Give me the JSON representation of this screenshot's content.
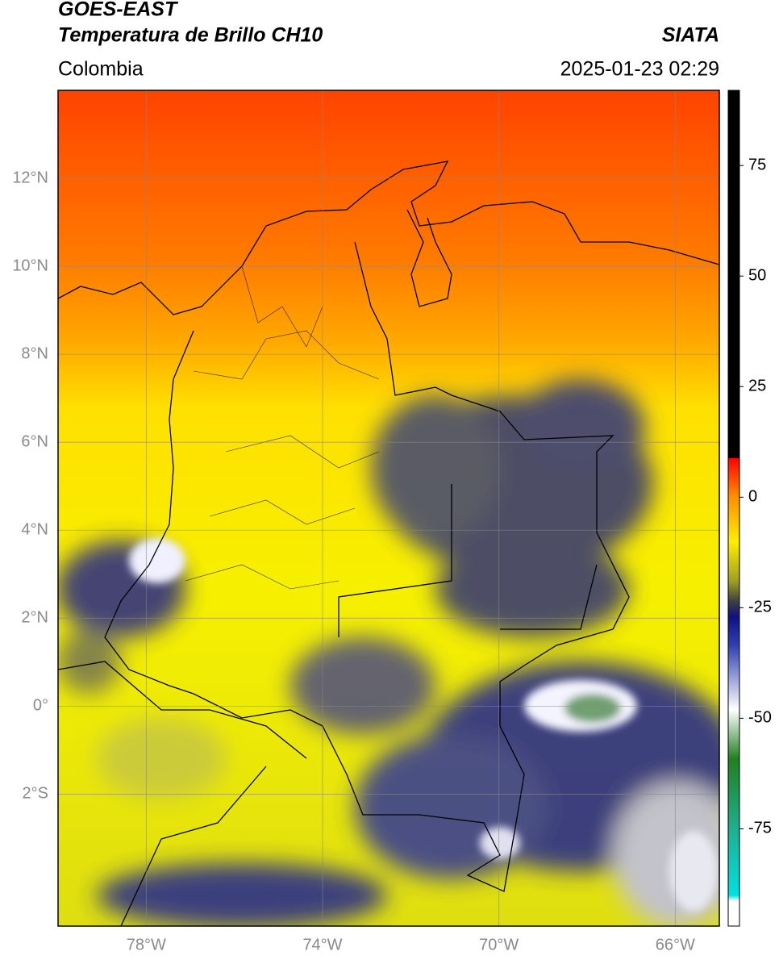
{
  "header": {
    "title": "GOES-EAST",
    "subtitle": "Temperatura de Brillo CH10",
    "source": "SIATA",
    "region": "Colombia",
    "timestamp": "2025-01-23 02:29"
  },
  "map": {
    "xlim": [
      -80,
      -65
    ],
    "ylim": [
      -5,
      14
    ],
    "grid": true,
    "xticks": [
      {
        "value": -78,
        "label": "78°W"
      },
      {
        "value": -74,
        "label": "74°W"
      },
      {
        "value": -70,
        "label": "70°W"
      },
      {
        "value": -66,
        "label": "66°W"
      }
    ],
    "yticks": [
      {
        "value": 12,
        "label": "12°N"
      },
      {
        "value": 10,
        "label": "10°N"
      },
      {
        "value": 8,
        "label": "8°N"
      },
      {
        "value": 6,
        "label": "6°N"
      },
      {
        "value": 4,
        "label": "4°N"
      },
      {
        "value": 2,
        "label": "2°N"
      },
      {
        "value": 0,
        "label": "0°"
      },
      {
        "value": -2,
        "label": "2°S"
      }
    ]
  },
  "colorbar": {
    "lim": [
      -97,
      92
    ],
    "ticks": [
      75,
      50,
      25,
      0,
      -25,
      -50,
      -75
    ]
  }
}
